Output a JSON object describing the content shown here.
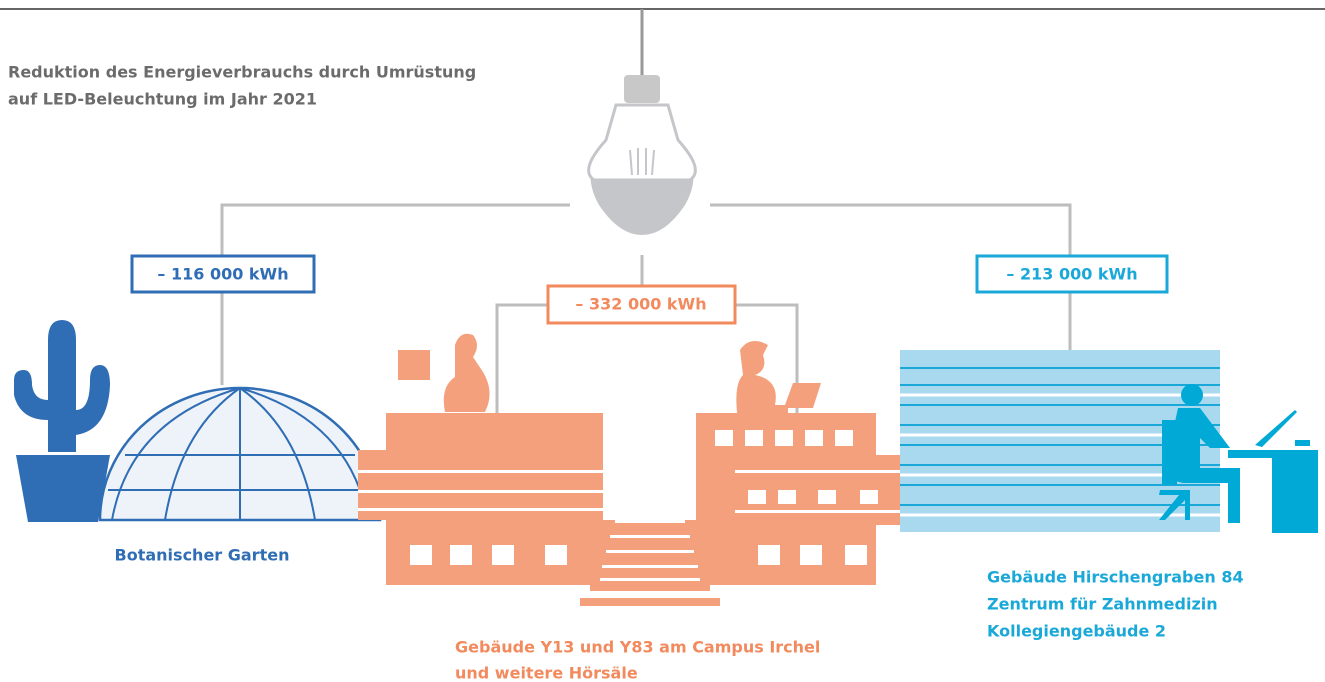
{
  "header": {
    "title_lines": [
      "Reduktion des Energieverbrauchs durch Umrüstung",
      "auf LED-Beleuchtung im Jahr 2021"
    ]
  },
  "items": [
    {
      "value": "– 116 000 kWh",
      "labels": [
        "Botanischer Garten"
      ]
    },
    {
      "value": "– 332 000 kWh",
      "labels": [
        "Gebäude Y13 und Y83 am Campus Irchel",
        "und weitere Hörsäle"
      ]
    },
    {
      "value": "– 213 000 kWh",
      "labels": [
        "Gebäude Hirschengraben 84",
        "Zentrum für Zahnmedizin",
        "Kollegiengebäude 2"
      ]
    }
  ]
}
